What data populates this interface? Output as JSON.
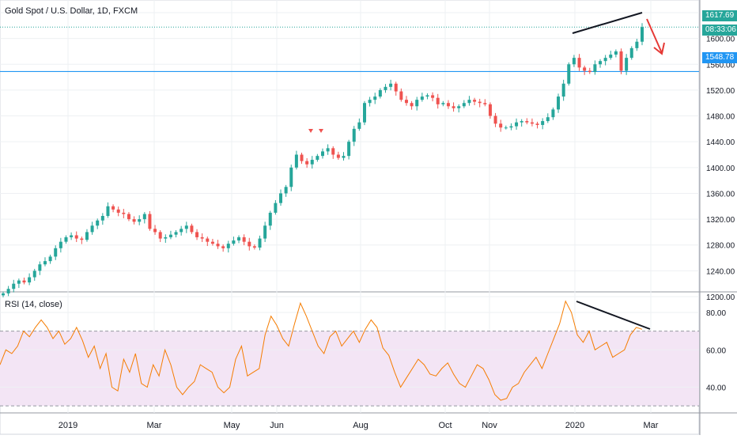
{
  "chart_title": "Gold Spot / U.S. Dollar, 1D, FXCM",
  "price_scale": {
    "last_price": "1617.69",
    "countdown": "08:33:06",
    "level_label": "1548.78",
    "colors": {
      "up": "#26a69a",
      "down": "#ef5350",
      "level_line": "#2196f3",
      "trend": "#131722",
      "arrow": "#e53935"
    }
  },
  "rsi_title": "RSI (14, close)",
  "x_axis_labels": [
    "2019",
    "Mar",
    "May",
    "Jun",
    "Aug",
    "Oct",
    "Nov",
    "2020",
    "Mar"
  ],
  "chart_data": [
    {
      "type": "candlestick",
      "title": "Gold Spot / U.S. Dollar, 1D, FXCM",
      "xlabel": "",
      "ylabel": "",
      "ylim": [
        1180,
        1640
      ],
      "yticks": [
        1200,
        1240,
        1280,
        1320,
        1360,
        1400,
        1440,
        1480,
        1520,
        1560,
        1600,
        1640
      ],
      "ytick_labels": [
        "1200.00",
        "1240.00",
        "1280.00",
        "1320.00",
        "1360.00",
        "1400.00",
        "1440.00",
        "1480.00",
        "1520.00",
        "1560.00",
        "1600.00",
        "1640.00"
      ],
      "grid": true,
      "horizontal_level": 1548.78,
      "last_price": 1617.69,
      "close_series": [
        1205,
        1212,
        1220,
        1225,
        1222,
        1230,
        1240,
        1250,
        1255,
        1262,
        1275,
        1285,
        1292,
        1295,
        1290,
        1288,
        1300,
        1310,
        1318,
        1325,
        1340,
        1335,
        1330,
        1328,
        1320,
        1316,
        1320,
        1328,
        1305,
        1300,
        1290,
        1292,
        1296,
        1300,
        1305,
        1310,
        1300,
        1292,
        1290,
        1285,
        1282,
        1278,
        1275,
        1282,
        1287,
        1292,
        1285,
        1278,
        1276,
        1290,
        1310,
        1330,
        1345,
        1360,
        1370,
        1400,
        1420,
        1410,
        1405,
        1412,
        1418,
        1425,
        1430,
        1420,
        1415,
        1418,
        1440,
        1460,
        1470,
        1500,
        1505,
        1510,
        1520,
        1525,
        1530,
        1518,
        1505,
        1500,
        1495,
        1505,
        1510,
        1512,
        1508,
        1498,
        1500,
        1495,
        1492,
        1495,
        1500,
        1505,
        1502,
        1500,
        1498,
        1480,
        1468,
        1462,
        1462,
        1464,
        1470,
        1472,
        1470,
        1468,
        1466,
        1472,
        1478,
        1490,
        1510,
        1530,
        1560,
        1570,
        1555,
        1550,
        1548,
        1560,
        1565,
        1570,
        1575,
        1580,
        1550,
        1570,
        1585,
        1595,
        1617.69
      ],
      "up_color": "#26a69a",
      "down_color": "#ef5350",
      "annotations": [
        "trendline-on-highs",
        "red-down-arrow"
      ]
    },
    {
      "type": "line",
      "title": "RSI (14, close)",
      "xlabel": "",
      "ylabel": "",
      "ylim": [
        25,
        90
      ],
      "yticks": [
        40,
        60,
        80
      ],
      "ytick_labels": [
        "40.00",
        "60.00",
        "80.00"
      ],
      "band": [
        30,
        70
      ],
      "grid": true,
      "series": [
        {
          "values": [
            52,
            60,
            58,
            62,
            70,
            67,
            72,
            76,
            72,
            66,
            70,
            63,
            66,
            72,
            65,
            56,
            62,
            50,
            58,
            40,
            38,
            55,
            48,
            58,
            42,
            40,
            52,
            46,
            60,
            52,
            40,
            36,
            40,
            43,
            52,
            50,
            48,
            40,
            37,
            40,
            55,
            62,
            46,
            48,
            50,
            68,
            78,
            73,
            66,
            62,
            74,
            85,
            78,
            70,
            62,
            58,
            67,
            70,
            62,
            66,
            70,
            64,
            71,
            76,
            72,
            61,
            57,
            48,
            40,
            45,
            50,
            55,
            52,
            47,
            46,
            50,
            53,
            47,
            42,
            40,
            46,
            52,
            50,
            44,
            36,
            33,
            34,
            40,
            42,
            48,
            52,
            56,
            50,
            58,
            66,
            74,
            86,
            80,
            68,
            64,
            70,
            60,
            62,
            64,
            56,
            58,
            60,
            68,
            72,
            71
          ],
          "color": "#f57c00"
        }
      ],
      "annotations": [
        "bearish-divergence-trendline"
      ]
    }
  ]
}
